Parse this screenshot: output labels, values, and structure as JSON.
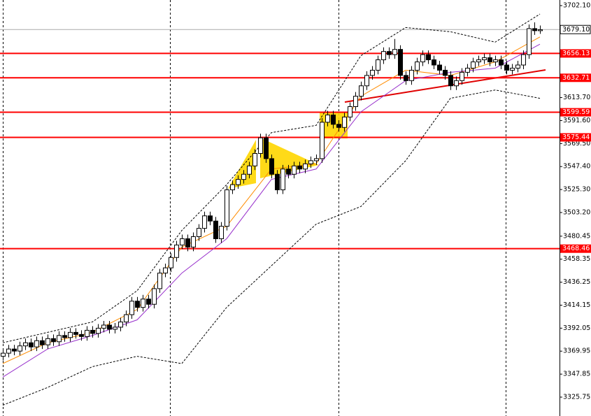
{
  "chart_data": {
    "type": "candlestick",
    "open": [
      3365,
      3368,
      3372,
      3370,
      3375,
      3378,
      3374,
      3380,
      3376,
      3382,
      3379,
      3385,
      3383,
      3388,
      3386,
      3384,
      3390,
      3387,
      3392,
      3395,
      3391,
      3393,
      3398,
      3405,
      3418,
      3412,
      3420,
      3415,
      3430,
      3445,
      3450,
      3460,
      3472,
      3478,
      3470,
      3480,
      3488,
      3500,
      3495,
      3478,
      3490,
      3525,
      3530,
      3535,
      3540,
      3548,
      3560,
      3575,
      3555,
      3540,
      3525,
      3545,
      3540,
      3548,
      3545,
      3550,
      3553,
      3555,
      3590,
      3597,
      3588,
      3585,
      3595,
      3605,
      3615,
      3625,
      3635,
      3640,
      3650,
      3658,
      3655,
      3660,
      3635,
      3630,
      3640,
      3648,
      3655,
      3650,
      3645,
      3640,
      3635,
      3625,
      3630,
      3638,
      3642,
      3648,
      3650,
      3652,
      3648,
      3650,
      3645,
      3640,
      3642,
      3645,
      3655,
      3680,
      3678
    ],
    "high": [
      3372,
      3376,
      3376,
      3379,
      3382,
      3382,
      3384,
      3384,
      3386,
      3386,
      3389,
      3389,
      3392,
      3392,
      3390,
      3394,
      3394,
      3396,
      3399,
      3399,
      3397,
      3402,
      3409,
      3422,
      3422,
      3424,
      3424,
      3434,
      3449,
      3454,
      3464,
      3476,
      3482,
      3482,
      3484,
      3492,
      3504,
      3504,
      3499,
      3494,
      3529,
      3534,
      3539,
      3544,
      3552,
      3564,
      3579,
      3579,
      3559,
      3544,
      3549,
      3549,
      3552,
      3552,
      3554,
      3557,
      3559,
      3594,
      3601,
      3601,
      3592,
      3599,
      3609,
      3619,
      3629,
      3639,
      3644,
      3654,
      3662,
      3662,
      3670,
      3664,
      3639,
      3644,
      3652,
      3659,
      3659,
      3654,
      3649,
      3644,
      3639,
      3634,
      3642,
      3646,
      3652,
      3654,
      3656,
      3656,
      3654,
      3654,
      3649,
      3646,
      3649,
      3659,
      3684,
      3686,
      3683
    ],
    "low": [
      3361,
      3364,
      3366,
      3366,
      3371,
      3370,
      3370,
      3372,
      3372,
      3375,
      3375,
      3379,
      3379,
      3382,
      3380,
      3380,
      3383,
      3383,
      3388,
      3387,
      3387,
      3389,
      3394,
      3401,
      3408,
      3408,
      3411,
      3411,
      3426,
      3441,
      3446,
      3456,
      3468,
      3466,
      3466,
      3476,
      3484,
      3491,
      3474,
      3474,
      3486,
      3521,
      3526,
      3531,
      3536,
      3544,
      3556,
      3551,
      3536,
      3521,
      3521,
      3536,
      3536,
      3541,
      3541,
      3546,
      3549,
      3551,
      3586,
      3584,
      3581,
      3581,
      3591,
      3601,
      3611,
      3621,
      3631,
      3636,
      3646,
      3651,
      3651,
      3631,
      3626,
      3626,
      3636,
      3644,
      3646,
      3641,
      3636,
      3631,
      3621,
      3621,
      3626,
      3634,
      3638,
      3644,
      3646,
      3644,
      3644,
      3641,
      3636,
      3636,
      3638,
      3641,
      3651,
      3674,
      3675
    ],
    "close": [
      3368,
      3372,
      3370,
      3375,
      3378,
      3374,
      3380,
      3376,
      3382,
      3379,
      3385,
      3383,
      3388,
      3386,
      3384,
      3390,
      3387,
      3392,
      3395,
      3391,
      3393,
      3398,
      3405,
      3418,
      3412,
      3420,
      3415,
      3430,
      3445,
      3450,
      3460,
      3472,
      3478,
      3470,
      3480,
      3488,
      3500,
      3495,
      3478,
      3490,
      3525,
      3530,
      3535,
      3540,
      3548,
      3560,
      3575,
      3555,
      3540,
      3525,
      3545,
      3540,
      3548,
      3545,
      3550,
      3553,
      3555,
      3590,
      3597,
      3588,
      3585,
      3595,
      3605,
      3615,
      3625,
      3635,
      3640,
      3650,
      3658,
      3655,
      3660,
      3635,
      3630,
      3640,
      3648,
      3655,
      3650,
      3645,
      3640,
      3635,
      3625,
      3630,
      3638,
      3642,
      3648,
      3650,
      3652,
      3648,
      3650,
      3645,
      3640,
      3642,
      3645,
      3655,
      3680,
      3678,
      3679
    ],
    "lines": [
      {
        "color": "#ff8c00",
        "x": [
          0,
          8,
          16,
          24,
          32,
          40,
          48,
          56,
          64,
          72,
          80,
          88,
          96
        ],
        "values": [
          3358,
          3378,
          3388,
          3410,
          3470,
          3490,
          3545,
          3550,
          3615,
          3640,
          3635,
          3648,
          3672
        ]
      },
      {
        "color": "#9932cc",
        "x": [
          0,
          8,
          16,
          24,
          32,
          40,
          48,
          56,
          64,
          72,
          80,
          88,
          96
        ],
        "values": [
          3345,
          3372,
          3385,
          3400,
          3445,
          3478,
          3535,
          3545,
          3600,
          3630,
          3638,
          3642,
          3665
        ]
      },
      {
        "color": "#000000",
        "dash": true,
        "x": [
          0,
          8,
          16,
          24,
          32,
          40,
          48,
          56,
          64,
          72,
          80,
          88,
          96
        ],
        "values": [
          3378,
          3388,
          3398,
          3428,
          3486,
          3530,
          3580,
          3587,
          3654,
          3681,
          3677,
          3667,
          3694
        ]
      },
      {
        "color": "#000000",
        "dash": true,
        "x": [
          0,
          8,
          16,
          24,
          32,
          40,
          48,
          56,
          64,
          72,
          80,
          88,
          96
        ],
        "values": [
          3318,
          3335,
          3355,
          3365,
          3358,
          3412,
          3452,
          3492,
          3509,
          3553,
          3613,
          3621,
          3613
        ]
      }
    ],
    "levels": [
      3656.13,
      3632.71,
      3599.59,
      3575.44,
      3468.46
    ],
    "levels_color": "#ff0000",
    "last_price": {
      "value": 3679.1,
      "label": "3679.10"
    },
    "ylim": [
      3307.6,
      3707.5
    ],
    "yticks": [
      {
        "value": 3702.1,
        "label": "3702.10"
      },
      {
        "value": 3613.7,
        "label": "3613.70"
      },
      {
        "value": 3591.6,
        "label": "3591.60"
      },
      {
        "value": 3569.5,
        "label": "3569.50"
      },
      {
        "value": 3547.4,
        "label": "3547.40"
      },
      {
        "value": 3525.3,
        "label": "3525.30"
      },
      {
        "value": 3503.2,
        "label": "3503.20"
      },
      3480.45,
      3458.35,
      3436.25,
      3414.15,
      3392.05,
      3369.95,
      3347.85,
      3325.75
    ]
  }
}
